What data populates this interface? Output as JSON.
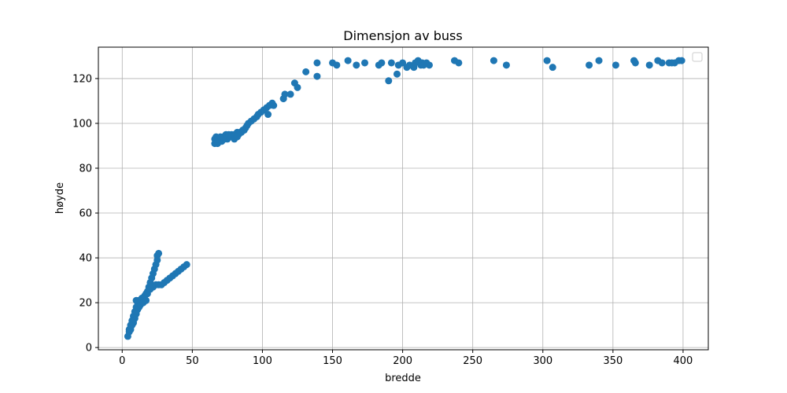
{
  "chart_data": {
    "type": "scatter",
    "title": "Dimensjon av buss",
    "xlabel": "bredde",
    "ylabel": "høyde",
    "xlim": [
      -17,
      418
    ],
    "ylim": [
      -1,
      134
    ],
    "x_ticks": [
      0,
      50,
      100,
      150,
      200,
      250,
      300,
      350,
      400
    ],
    "y_ticks": [
      0,
      20,
      40,
      60,
      80,
      100,
      120
    ],
    "grid": true,
    "legend": "top-right",
    "color": "#1f77b4",
    "series": [
      {
        "points": [
          [
            4,
            5
          ],
          [
            5,
            7
          ],
          [
            5,
            8
          ],
          [
            6,
            9
          ],
          [
            6,
            8
          ],
          [
            7,
            10
          ],
          [
            7,
            11
          ],
          [
            8,
            11
          ],
          [
            8,
            12
          ],
          [
            9,
            13
          ],
          [
            9,
            14
          ],
          [
            10,
            15
          ],
          [
            10,
            16
          ],
          [
            11,
            17
          ],
          [
            11,
            18
          ],
          [
            12,
            18
          ],
          [
            12,
            19
          ],
          [
            13,
            20
          ],
          [
            14,
            21
          ],
          [
            15,
            22
          ],
          [
            16,
            23
          ],
          [
            17,
            24
          ],
          [
            18,
            25
          ],
          [
            19,
            27
          ],
          [
            20,
            29
          ],
          [
            21,
            31
          ],
          [
            22,
            33
          ],
          [
            23,
            35
          ],
          [
            24,
            37
          ],
          [
            25,
            39
          ],
          [
            25,
            41
          ],
          [
            26,
            42
          ],
          [
            10,
            21
          ],
          [
            12,
            21
          ],
          [
            14,
            22
          ],
          [
            16,
            23
          ],
          [
            18,
            24
          ],
          [
            20,
            26
          ],
          [
            22,
            27
          ],
          [
            24,
            28
          ],
          [
            26,
            28
          ],
          [
            28,
            28
          ],
          [
            30,
            29
          ],
          [
            32,
            30
          ],
          [
            34,
            31
          ],
          [
            36,
            32
          ],
          [
            38,
            33
          ],
          [
            40,
            34
          ],
          [
            42,
            35
          ],
          [
            44,
            36
          ],
          [
            46,
            37
          ],
          [
            8,
            14
          ],
          [
            9,
            16
          ],
          [
            10,
            18
          ],
          [
            11,
            20
          ],
          [
            13,
            19
          ],
          [
            15,
            20
          ],
          [
            17,
            21
          ],
          [
            7,
            12
          ],
          [
            6,
            10
          ],
          [
            66,
            91
          ],
          [
            67,
            92
          ],
          [
            68,
            91
          ],
          [
            69,
            92
          ],
          [
            70,
            93
          ],
          [
            71,
            92
          ],
          [
            72,
            93
          ],
          [
            73,
            93
          ],
          [
            74,
            94
          ],
          [
            75,
            93
          ],
          [
            76,
            94
          ],
          [
            77,
            94
          ],
          [
            78,
            95
          ],
          [
            79,
            94
          ],
          [
            80,
            95
          ],
          [
            81,
            95
          ],
          [
            82,
            96
          ],
          [
            83,
            95
          ],
          [
            84,
            96
          ],
          [
            85,
            96
          ],
          [
            66,
            93
          ],
          [
            67,
            94
          ],
          [
            68,
            93
          ],
          [
            70,
            94
          ],
          [
            72,
            94
          ],
          [
            74,
            95
          ],
          [
            76,
            95
          ],
          [
            78,
            94
          ],
          [
            80,
            93
          ],
          [
            82,
            94
          ],
          [
            86,
            97
          ],
          [
            87,
            97
          ],
          [
            88,
            98
          ],
          [
            89,
            99
          ],
          [
            90,
            100
          ],
          [
            92,
            101
          ],
          [
            94,
            102
          ],
          [
            96,
            103
          ],
          [
            97,
            104
          ],
          [
            99,
            105
          ],
          [
            101,
            106
          ],
          [
            103,
            107
          ],
          [
            105,
            108
          ],
          [
            107,
            109
          ],
          [
            104,
            104
          ],
          [
            108,
            108
          ],
          [
            115,
            111
          ],
          [
            116,
            113
          ],
          [
            120,
            113
          ],
          [
            123,
            118
          ],
          [
            125,
            116
          ],
          [
            131,
            123
          ],
          [
            139,
            121
          ],
          [
            139,
            127
          ],
          [
            150,
            127
          ],
          [
            153,
            126
          ],
          [
            161,
            128
          ],
          [
            167,
            126
          ],
          [
            173,
            127
          ],
          [
            183,
            126
          ],
          [
            185,
            127
          ],
          [
            190,
            119
          ],
          [
            192,
            127
          ],
          [
            196,
            122
          ],
          [
            197,
            126
          ],
          [
            200,
            127
          ],
          [
            203,
            125
          ],
          [
            205,
            126
          ],
          [
            208,
            125
          ],
          [
            209,
            127
          ],
          [
            211,
            128
          ],
          [
            213,
            126
          ],
          [
            214,
            127
          ],
          [
            215,
            126
          ],
          [
            217,
            127
          ],
          [
            219,
            126
          ],
          [
            237,
            128
          ],
          [
            240,
            127
          ],
          [
            265,
            128
          ],
          [
            274,
            126
          ],
          [
            303,
            128
          ],
          [
            307,
            125
          ],
          [
            333,
            126
          ],
          [
            340,
            128
          ],
          [
            352,
            126
          ],
          [
            365,
            128
          ],
          [
            366,
            127
          ],
          [
            376,
            126
          ],
          [
            382,
            128
          ],
          [
            385,
            127
          ],
          [
            390,
            127
          ],
          [
            392,
            127
          ],
          [
            394,
            127
          ],
          [
            397,
            128
          ],
          [
            399,
            128
          ]
        ]
      }
    ]
  }
}
